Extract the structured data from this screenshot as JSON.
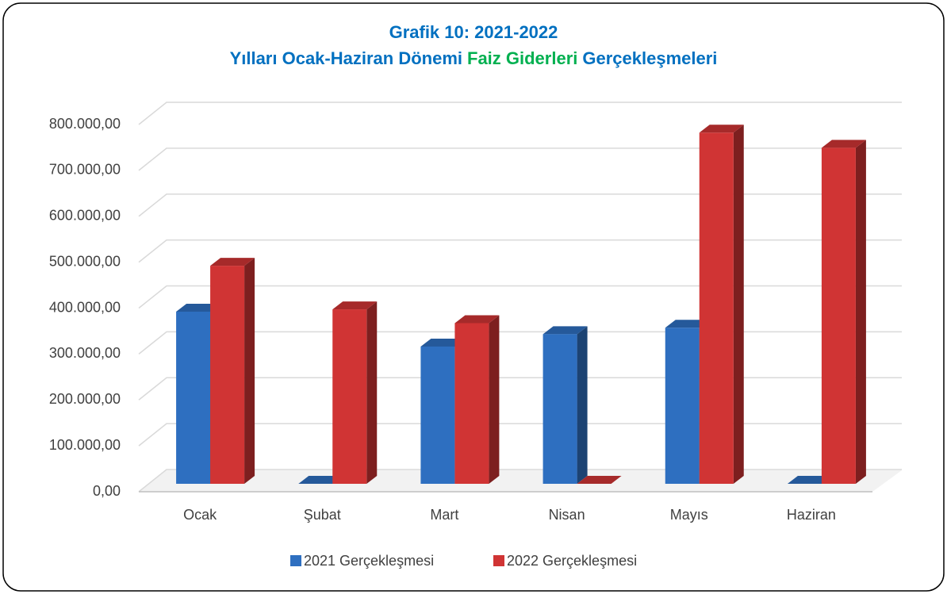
{
  "chart_data": {
    "type": "bar3d",
    "title": "Grafik 10: 2021-2022",
    "subtitle": [
      {
        "text": "Yılları Ocak-Haziran Dönemi",
        "color": "#0070c0"
      },
      {
        "text": "Faiz Giderleri",
        "color": "#00b050"
      },
      {
        "text": "Gerçekleşmeleri",
        "color": "#0070c0"
      }
    ],
    "title_color": "#0070c0",
    "categories": [
      "Ocak",
      "Şubat",
      "Mart",
      "Nisan",
      "Mayıs",
      "Haziran"
    ],
    "series": [
      {
        "name": "2021 Gerçekleşmesi",
        "color": "#2e6fc0",
        "values": [
          375000,
          0,
          299000,
          326000,
          340000,
          0
        ]
      },
      {
        "name": "2022 Gerçekleşmesi",
        "color": "#d03434",
        "values": [
          475000,
          380000,
          350000,
          0,
          765000,
          732000
        ]
      }
    ],
    "ylim": [
      0,
      800000
    ],
    "yticks": [
      {
        "value": 0,
        "label": "0,00"
      },
      {
        "value": 100000,
        "label": "100.000,00"
      },
      {
        "value": 200000,
        "label": "200.000,00"
      },
      {
        "value": 300000,
        "label": "300.000,00"
      },
      {
        "value": 400000,
        "label": "400.000,00"
      },
      {
        "value": 500000,
        "label": "500.000,00"
      },
      {
        "value": 600000,
        "label": "600.000,00"
      },
      {
        "value": 700000,
        "label": "700.000,00"
      },
      {
        "value": 800000,
        "label": "800.000,00"
      }
    ],
    "grid": true,
    "legend": "bottom"
  }
}
